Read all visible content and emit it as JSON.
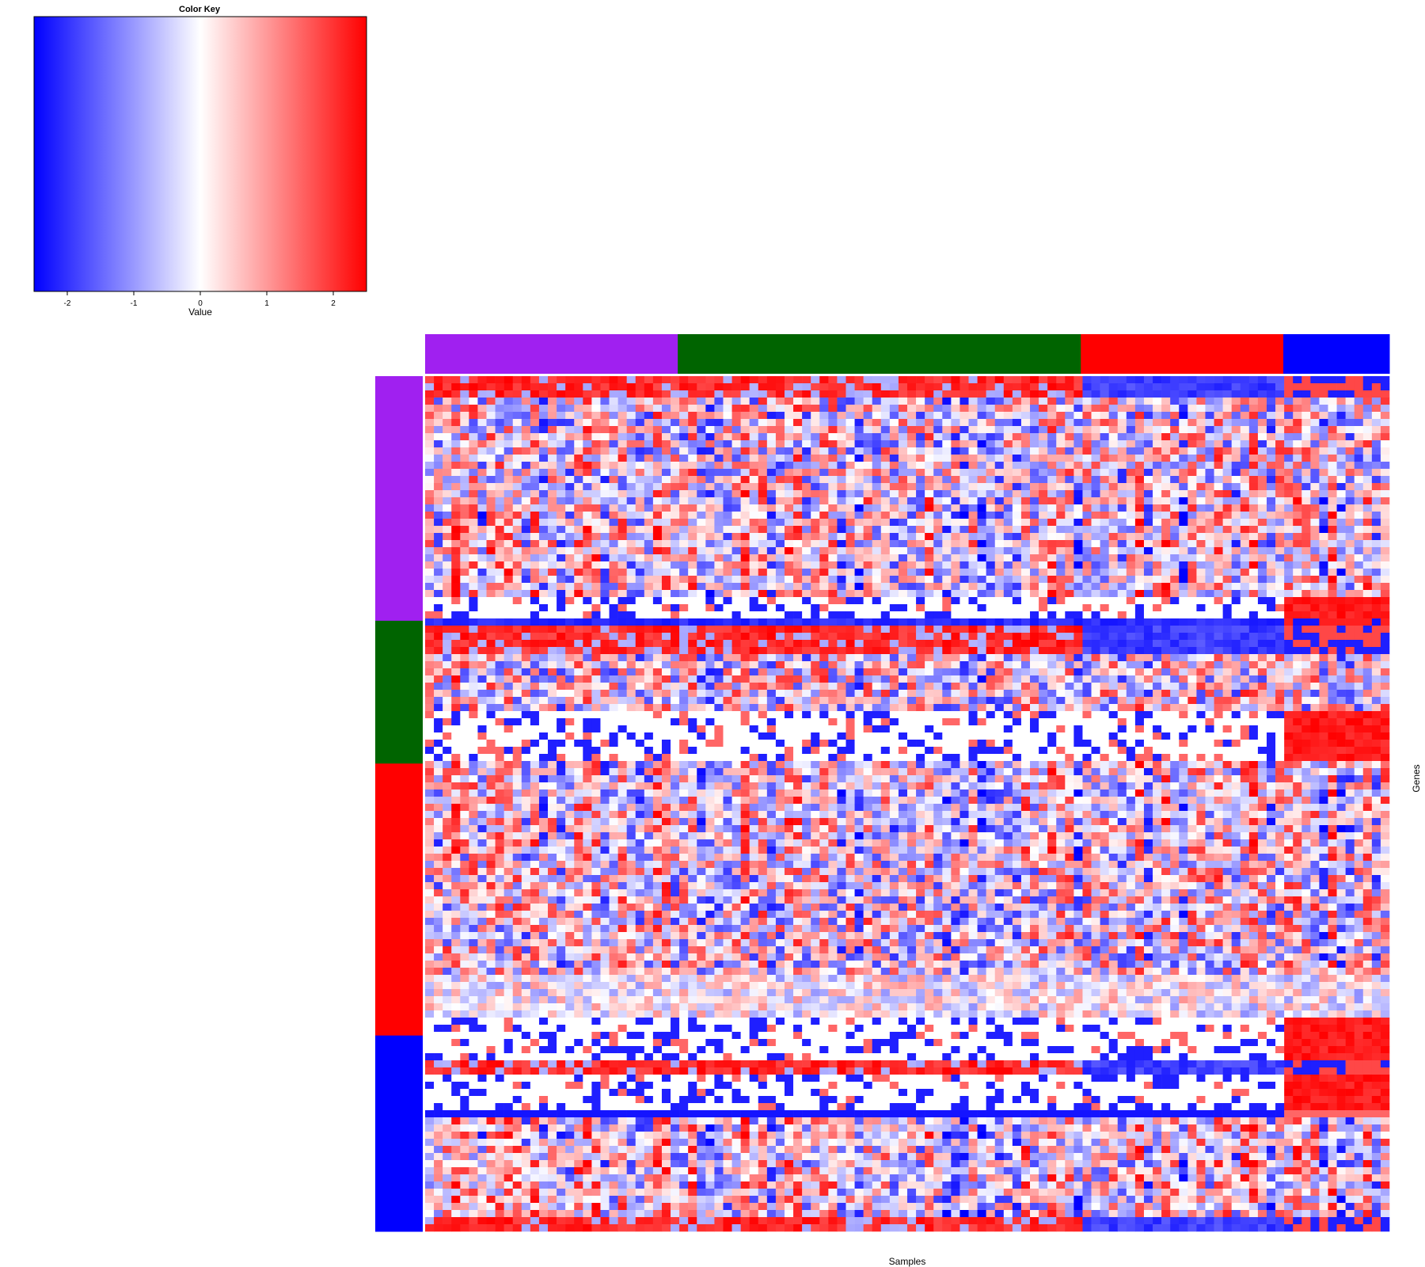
{
  "chart_data": {
    "type": "heatmap",
    "title": "",
    "xlabel": "Samples",
    "ylabel": "Genes",
    "color_key": {
      "title": "Color Key",
      "xlabel": "Value",
      "range": [
        -2.5,
        2.5
      ],
      "ticks": [
        -2,
        -1,
        0,
        1,
        2
      ],
      "tick_labels": [
        "-2",
        "-1",
        "0",
        "1",
        "2"
      ],
      "colors": [
        "#0000ff",
        "#ffffff",
        "#ff0000"
      ]
    },
    "column_groups": [
      {
        "color": "#a020f0",
        "fraction": 0.262
      },
      {
        "color": "#006400",
        "fraction": 0.418
      },
      {
        "color": "#ff0000",
        "fraction": 0.21
      },
      {
        "color": "#0000ff",
        "fraction": 0.11
      }
    ],
    "row_groups": [
      {
        "color": "#a020f0",
        "fraction": 0.286
      },
      {
        "color": "#006400",
        "fraction": 0.167
      },
      {
        "color": "#ff0000",
        "fraction": 0.318
      },
      {
        "color": "#0000ff",
        "fraction": 0.229
      }
    ],
    "matrix": {
      "n_rows": 120,
      "n_cols": 110,
      "note": "values in [-2.5, 2.5]; pattern approximated from image"
    }
  }
}
